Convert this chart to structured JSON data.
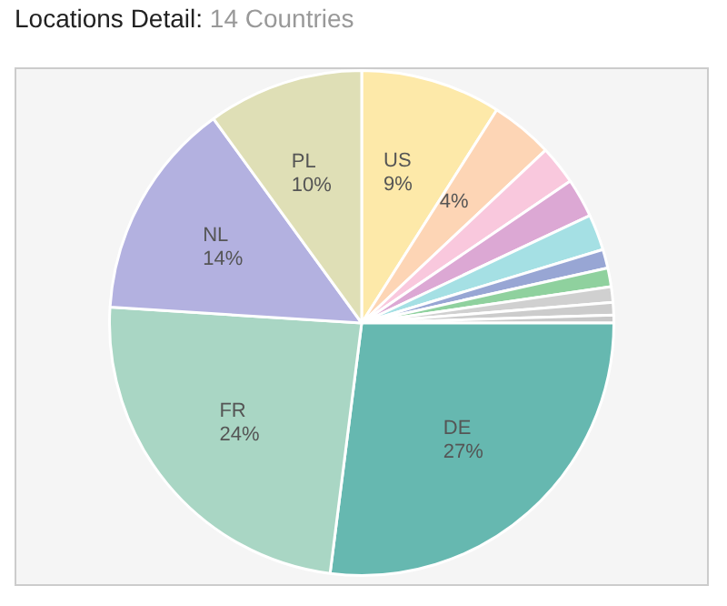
{
  "chart_data": {
    "type": "pie",
    "title": "Locations Detail:",
    "subtitle": "14 Countries",
    "categories": [
      "US",
      null,
      null,
      null,
      null,
      null,
      null,
      null,
      null,
      null,
      "DE",
      "FR",
      "NL",
      "PL"
    ],
    "values": [
      9,
      4,
      2.5,
      2.5,
      2.3,
      1.2,
      1.2,
      1,
      0.8,
      0.5,
      27,
      24,
      14,
      10
    ],
    "value_labels": [
      "9%",
      "4%",
      null,
      null,
      null,
      null,
      null,
      null,
      null,
      null,
      "27%",
      "24%",
      "14%",
      "10%"
    ],
    "colors": [
      "#fde9a9",
      "#fdd5b5",
      "#f9c8dd",
      "#dca8d4",
      "#a5e0e4",
      "#98a6d4",
      "#8fd19e",
      "#d0d0d0",
      "#cccccc",
      "#c8c8c8",
      "#66b8b0",
      "#a9d6c4",
      "#b3b1e0",
      "#dfdfb6"
    ],
    "legend": false
  }
}
